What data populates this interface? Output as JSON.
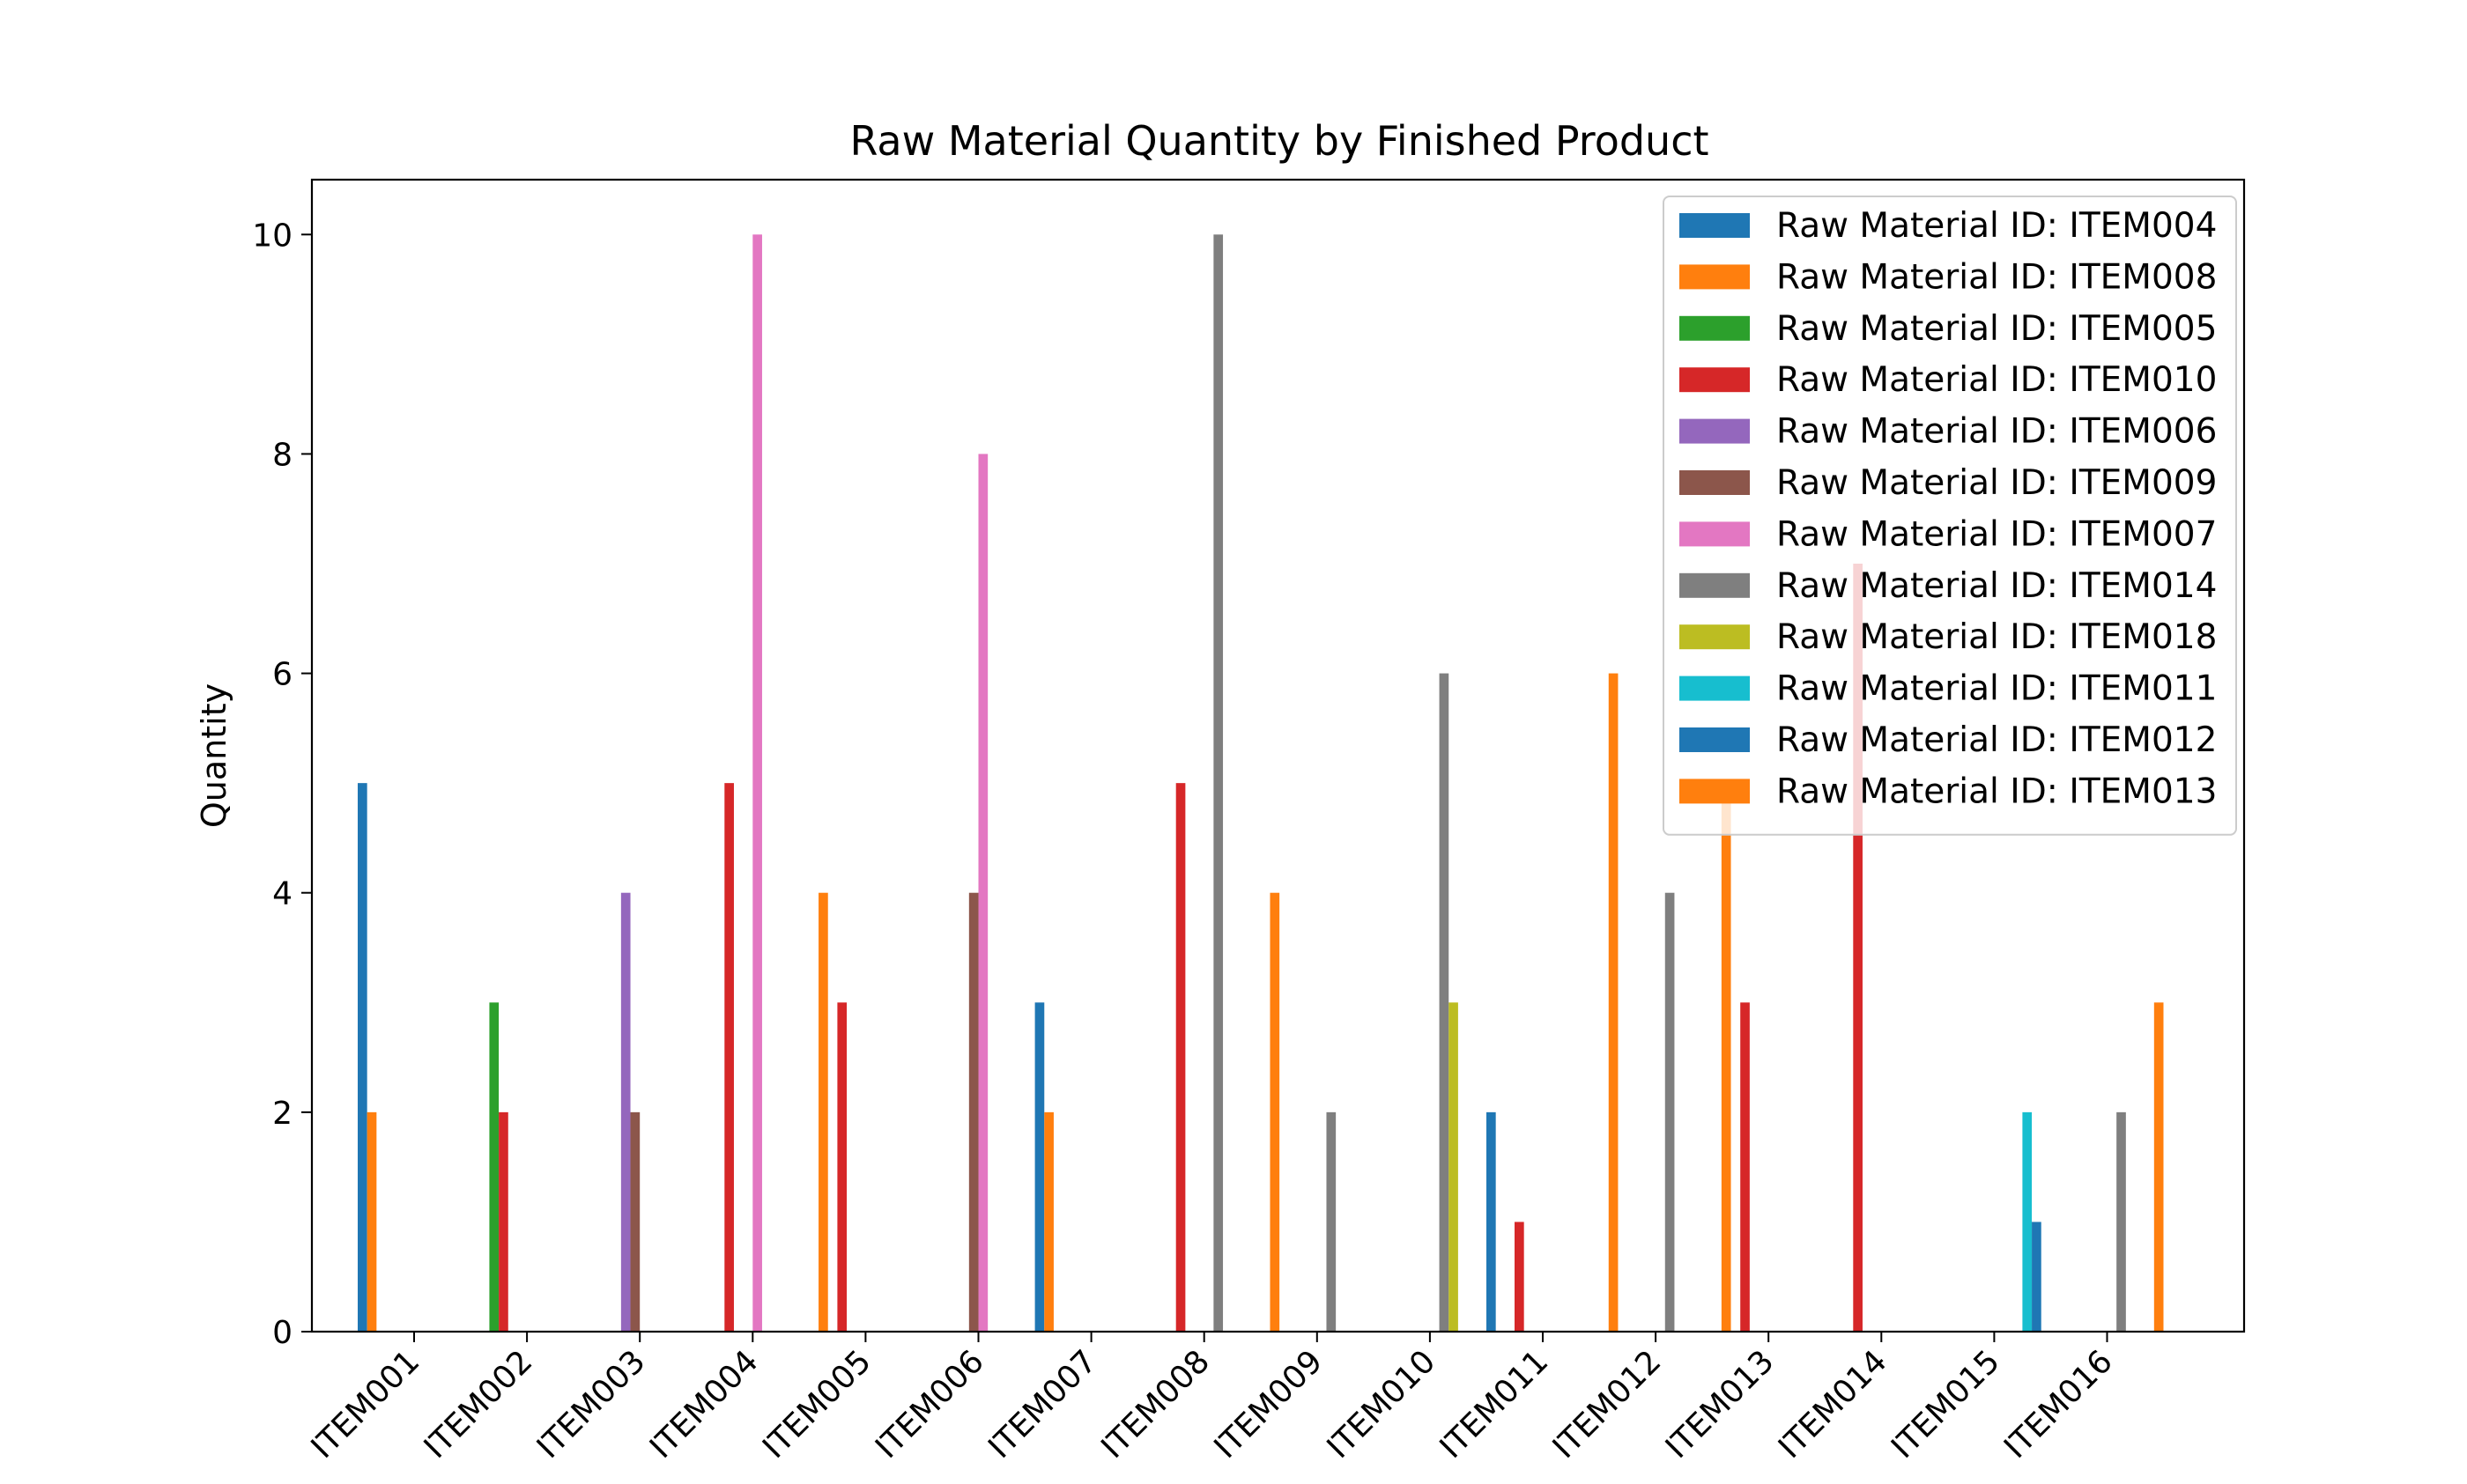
{
  "chart_data": {
    "type": "bar",
    "title": "Raw Material Quantity by Finished Product",
    "xlabel": "",
    "ylabel": "Quantity",
    "ylim": [
      0,
      10.5
    ],
    "yticks": [
      "0",
      "2",
      "4",
      "6",
      "8",
      "10"
    ],
    "grid": false,
    "legend_position": "top-right",
    "categories": [
      "ITEM001",
      "ITEM002",
      "ITEM003",
      "ITEM004",
      "ITEM005",
      "ITEM006",
      "ITEM007",
      "ITEM008",
      "ITEM009",
      "ITEM010",
      "ITEM011",
      "ITEM012",
      "ITEM013",
      "ITEM014",
      "ITEM015",
      "ITEM016"
    ],
    "series": [
      {
        "name": "Raw Material ID: ITEM004",
        "color": "#1f77b4",
        "values": [
          5,
          0,
          0,
          0,
          0,
          0,
          3,
          0,
          0,
          0,
          2,
          0,
          0,
          0,
          0,
          0
        ]
      },
      {
        "name": "Raw Material ID: ITEM008",
        "color": "#ff7f0e",
        "values": [
          2,
          0,
          0,
          0,
          4,
          0,
          2,
          0,
          4,
          0,
          0,
          6,
          5,
          0,
          0,
          0
        ]
      },
      {
        "name": "Raw Material ID: ITEM005",
        "color": "#2ca02c",
        "values": [
          0,
          3,
          0,
          0,
          0,
          0,
          0,
          0,
          0,
          0,
          0,
          0,
          0,
          0,
          0,
          0
        ]
      },
      {
        "name": "Raw Material ID: ITEM010",
        "color": "#d62728",
        "values": [
          0,
          2,
          0,
          5,
          3,
          0,
          0,
          5,
          0,
          0,
          1,
          0,
          3,
          7,
          0,
          0
        ]
      },
      {
        "name": "Raw Material ID: ITEM006",
        "color": "#9467bd",
        "values": [
          0,
          0,
          4,
          0,
          0,
          0,
          0,
          0,
          0,
          0,
          0,
          0,
          0,
          0,
          0,
          0
        ]
      },
      {
        "name": "Raw Material ID: ITEM009",
        "color": "#8c564b",
        "values": [
          0,
          0,
          2,
          0,
          0,
          4,
          0,
          0,
          0,
          0,
          0,
          0,
          0,
          0,
          0,
          0
        ]
      },
      {
        "name": "Raw Material ID: ITEM007",
        "color": "#e377c2",
        "values": [
          0,
          0,
          0,
          10,
          0,
          8,
          0,
          0,
          0,
          0,
          0,
          0,
          0,
          0,
          0,
          0
        ]
      },
      {
        "name": "Raw Material ID: ITEM014",
        "color": "#7f7f7f",
        "values": [
          0,
          0,
          0,
          0,
          0,
          0,
          0,
          10,
          2,
          6,
          0,
          4,
          0,
          0,
          0,
          2
        ]
      },
      {
        "name": "Raw Material ID: ITEM018",
        "color": "#bcbd22",
        "values": [
          0,
          0,
          0,
          0,
          0,
          0,
          0,
          0,
          0,
          3,
          0,
          0,
          0,
          0,
          0,
          0
        ]
      },
      {
        "name": "Raw Material ID: ITEM011",
        "color": "#17becf",
        "values": [
          0,
          0,
          0,
          0,
          0,
          0,
          0,
          0,
          0,
          0,
          0,
          0,
          0,
          0,
          2,
          0
        ]
      },
      {
        "name": "Raw Material ID: ITEM012",
        "color": "#1f77b4",
        "values": [
          0,
          0,
          0,
          0,
          0,
          0,
          0,
          0,
          0,
          0,
          0,
          0,
          0,
          0,
          1,
          0
        ]
      },
      {
        "name": "Raw Material ID: ITEM013",
        "color": "#ff7f0e",
        "values": [
          0,
          0,
          0,
          0,
          0,
          0,
          0,
          0,
          0,
          0,
          0,
          0,
          0,
          0,
          0,
          3
        ]
      }
    ]
  }
}
